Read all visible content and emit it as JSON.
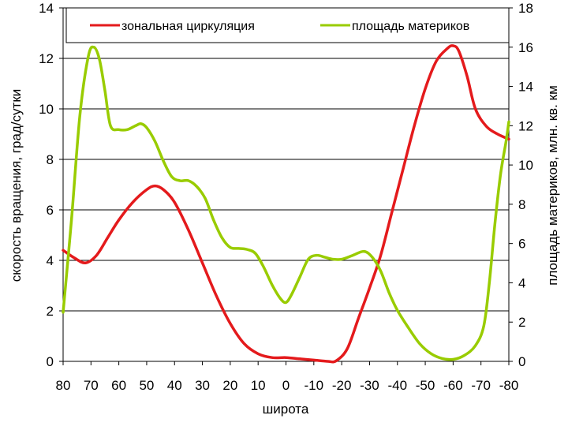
{
  "chart_data": {
    "type": "line",
    "xlabel": "широта",
    "ylabel_left": "скорость вращения, град/сутки",
    "ylabel_right": "площадь материков, млн. кв. км",
    "x_ticks": [
      "80",
      "70",
      "60",
      "50",
      "40",
      "30",
      "20",
      "10",
      "0",
      "-10",
      "-20",
      "-30",
      "-40",
      "-50",
      "-60",
      "-70",
      "-80"
    ],
    "y_left_ticks": [
      "0",
      "2",
      "4",
      "6",
      "8",
      "10",
      "12",
      "14"
    ],
    "y_right_ticks": [
      "0",
      "2",
      "4",
      "6",
      "8",
      "10",
      "12",
      "14",
      "16",
      "18"
    ],
    "y_left_range": [
      0,
      14
    ],
    "y_right_range": [
      0,
      18
    ],
    "x_range": [
      80,
      -80
    ],
    "grid": "horizontal",
    "legend_position": "top",
    "series": [
      {
        "name": "зональная циркуляция",
        "axis": "left",
        "color": "#e41a1c",
        "x": [
          80,
          76,
          72,
          68,
          64,
          60,
          55,
          50,
          47,
          44,
          40,
          35,
          30,
          25,
          20,
          15,
          10,
          5,
          0,
          -5,
          -10,
          -15,
          -18,
          -22,
          -26,
          -30,
          -34,
          -38,
          -42,
          -46,
          -50,
          -54,
          -58,
          -60,
          -62,
          -65,
          -68,
          -72,
          -76,
          -80
        ],
        "y": [
          4.4,
          4.1,
          3.9,
          4.2,
          4.9,
          5.6,
          6.3,
          6.8,
          6.95,
          6.8,
          6.3,
          5.2,
          3.9,
          2.6,
          1.5,
          0.7,
          0.3,
          0.15,
          0.15,
          0.1,
          0.05,
          0.0,
          0.02,
          0.5,
          1.7,
          2.9,
          4.2,
          5.9,
          7.6,
          9.3,
          10.8,
          11.9,
          12.4,
          12.5,
          12.3,
          11.3,
          10.0,
          9.3,
          9.0,
          8.8
        ]
      },
      {
        "name": "площадь материков",
        "axis": "right",
        "color": "#99cc00",
        "x": [
          80,
          77,
          74,
          71,
          69,
          67,
          65,
          63,
          60,
          57,
          54,
          52,
          50,
          47,
          44,
          41,
          38,
          35,
          32,
          29,
          26,
          23,
          20,
          17,
          14,
          11,
          8,
          5,
          2,
          0,
          -2,
          -5,
          -8,
          -11,
          -14,
          -17,
          -20,
          -24,
          -28,
          -31,
          -34,
          -37,
          -40,
          -44,
          -48,
          -52,
          -56,
          -60,
          -64,
          -68,
          -71,
          -73,
          -75,
          -77,
          -79,
          -80
        ],
        "y": [
          2.5,
          7.2,
          12.5,
          15.5,
          16.0,
          15.4,
          13.8,
          12.0,
          11.8,
          11.8,
          12.0,
          12.1,
          11.9,
          11.2,
          10.2,
          9.4,
          9.2,
          9.2,
          8.9,
          8.3,
          7.2,
          6.3,
          5.8,
          5.75,
          5.7,
          5.5,
          4.8,
          3.9,
          3.2,
          3.0,
          3.4,
          4.3,
          5.2,
          5.4,
          5.3,
          5.2,
          5.2,
          5.4,
          5.6,
          5.3,
          4.6,
          3.5,
          2.6,
          1.7,
          0.9,
          0.4,
          0.15,
          0.1,
          0.3,
          0.8,
          1.8,
          4.0,
          7.0,
          9.5,
          11.2,
          12.2
        ]
      }
    ]
  }
}
